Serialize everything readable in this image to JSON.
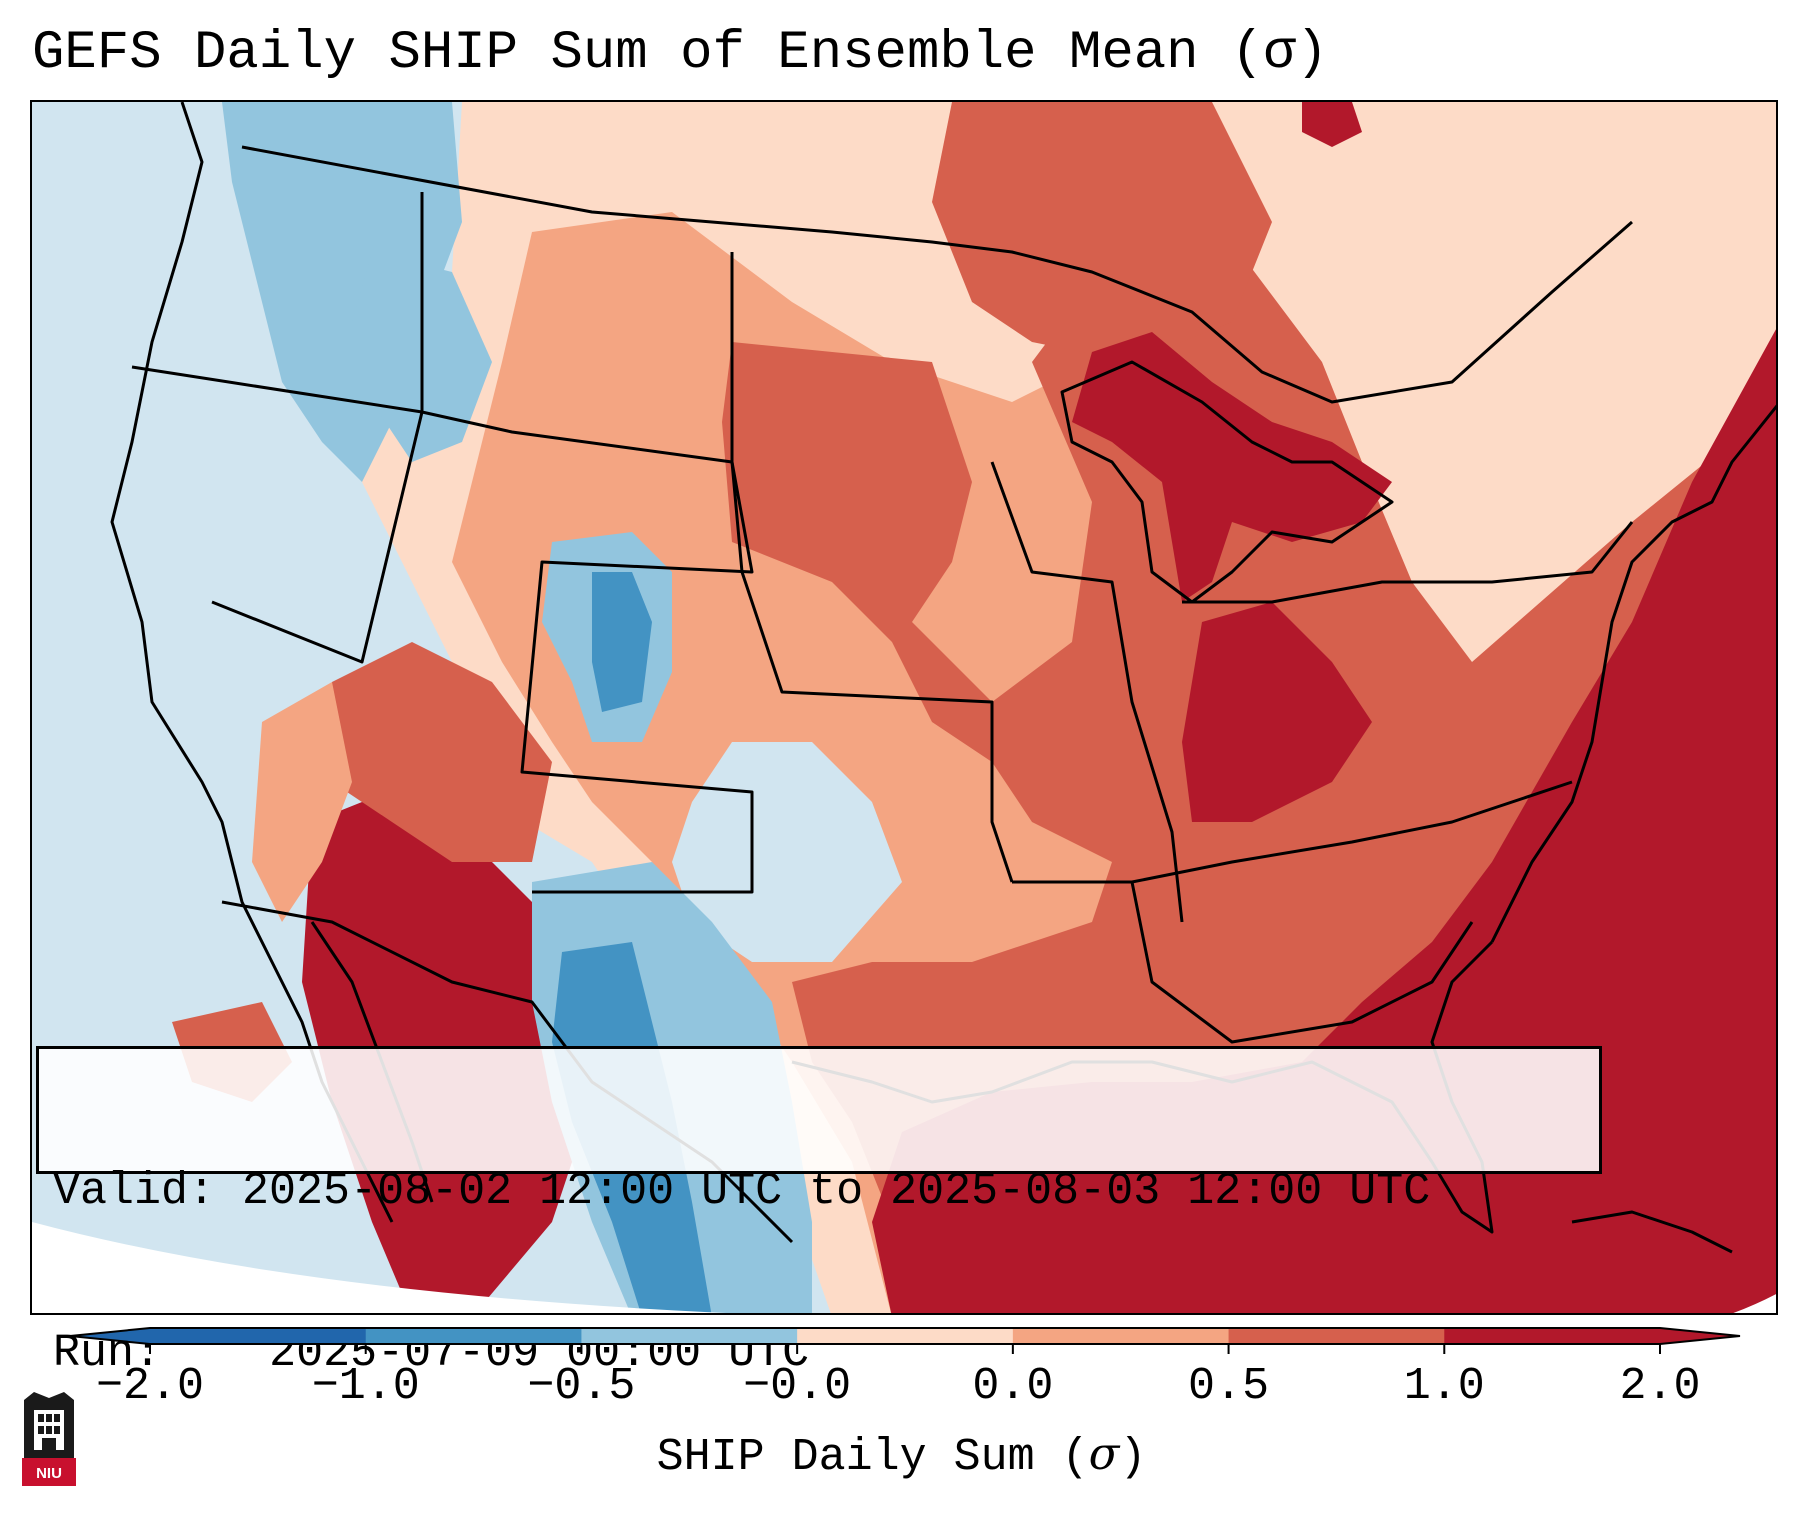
{
  "title": "GEFS Daily SHIP Sum of Ensemble Mean (σ)",
  "info": {
    "valid_label": "Valid:",
    "valid_value": "2025-08-02 12:00 UTC to 2025-08-03 12:00 UTC",
    "run_label": "Run:",
    "run_value": "2025-07-09 00:00 UTC"
  },
  "colorbar": {
    "label_prefix": "SHIP Daily Sum (",
    "label_symbol": "σ",
    "label_suffix": ")",
    "ticks": [
      "−2.0",
      "−1.0",
      "−0.5",
      "−0.0",
      "0.0",
      "0.5",
      "1.0",
      "2.0"
    ],
    "colors": [
      "#2166ac",
      "#4393c3",
      "#92c5de",
      "#d1e5f0",
      "#fddbc7",
      "#f4a582",
      "#d6604d",
      "#b2182b"
    ]
  },
  "logo": {
    "text": "NIU",
    "colors": {
      "shield": "#1a1a1a",
      "banner": "#c8102e"
    }
  },
  "map_colors": {
    "dark_red": "#b2182b",
    "red": "#d6604d",
    "salmon": "#f4a582",
    "peach": "#fddbc7",
    "pale_blue": "#d1e5f0",
    "light_blue": "#92c5de",
    "blue": "#4393c3",
    "dark_blue": "#2166ac"
  }
}
